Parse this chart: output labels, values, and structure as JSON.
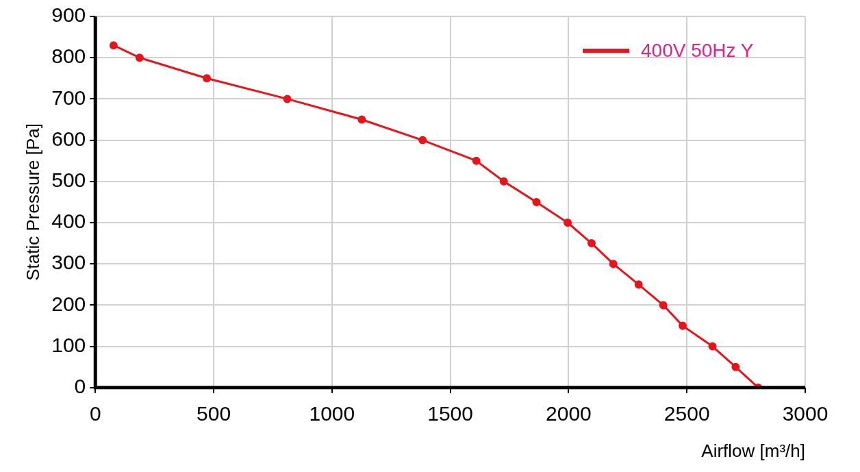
{
  "chart_data": {
    "type": "line",
    "xlabel": "Airflow [m³/h]",
    "ylabel": "Static Pressure [Pa]",
    "xlim": [
      0,
      3000
    ],
    "xticks": [
      0,
      500,
      1000,
      1500,
      2000,
      2500,
      3000
    ],
    "ylim": [
      0,
      900
    ],
    "yticks": [
      0,
      100,
      200,
      300,
      400,
      500,
      600,
      700,
      800,
      900
    ],
    "grid": true,
    "legend": "top right",
    "marker": "circle",
    "line_style": "solid",
    "series": [
      {
        "name": "400V 50Hz Y",
        "color": "#e8141b",
        "x": [
          77,
          187,
          471,
          811,
          1126,
          1383,
          1610,
          1726,
          1864,
          1996,
          2097,
          2189,
          2296,
          2400,
          2482,
          2608,
          2706,
          2801
        ],
        "values": [
          830,
          800,
          750,
          700,
          650,
          600,
          550,
          500,
          450,
          400,
          350,
          300,
          250,
          200,
          150,
          100,
          50,
          0
        ]
      }
    ]
  }
}
